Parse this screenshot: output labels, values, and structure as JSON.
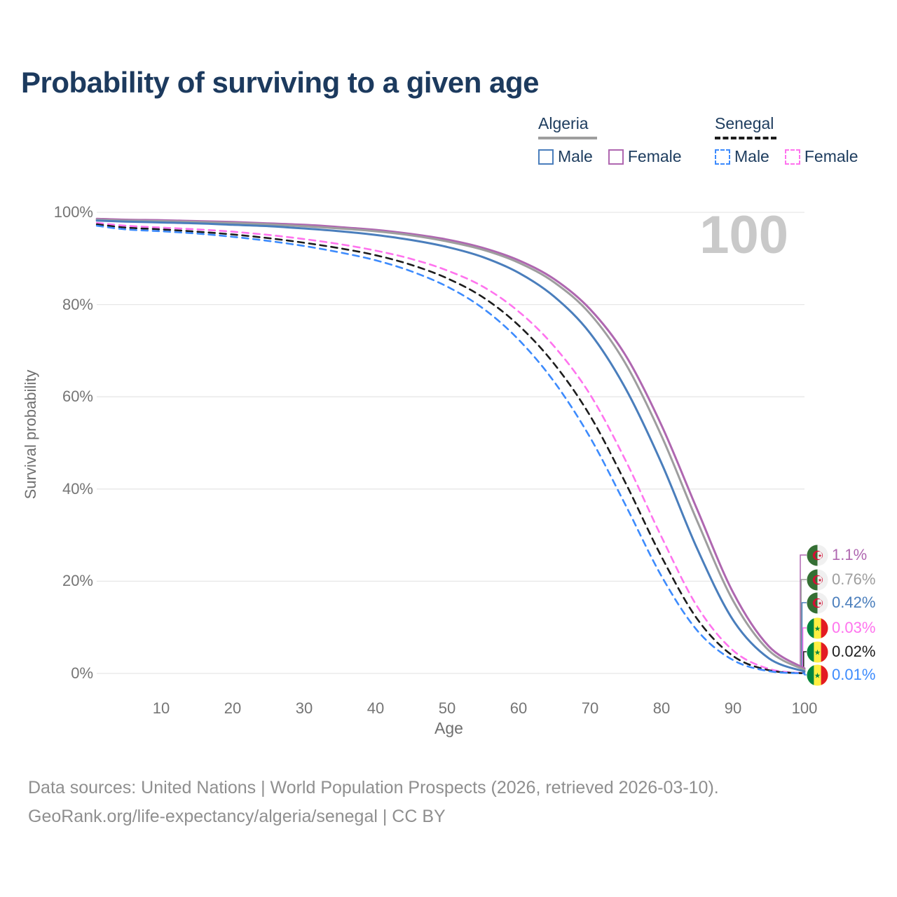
{
  "header": {
    "title": "Probability of surviving to a given age"
  },
  "legend": {
    "groups": [
      {
        "country": "Algeria",
        "line_style": "solid",
        "underline_color": "#9e9e9e",
        "items": [
          {
            "label": "Male",
            "color": "#4a7ebc",
            "style": "solid"
          },
          {
            "label": "Female",
            "color": "#af67b0",
            "style": "solid"
          }
        ]
      },
      {
        "country": "Senegal",
        "line_style": "dashed",
        "underline_color": "#1c1c1c",
        "items": [
          {
            "label": "Male",
            "color": "#3d8bfd",
            "style": "dashed"
          },
          {
            "label": "Female",
            "color": "#ff73ee",
            "style": "dashed"
          }
        ]
      }
    ]
  },
  "chart": {
    "age_counter": "100"
  },
  "chart_data": {
    "type": "line",
    "title": "Probability of surviving to a given age",
    "xlabel": "Age",
    "ylabel": "Survival probability",
    "xlim": [
      0,
      100
    ],
    "ylim": [
      0,
      100
    ],
    "xticks": [
      10,
      20,
      30,
      40,
      50,
      60,
      70,
      80,
      90,
      100
    ],
    "yticks": [
      {
        "value": 0,
        "label": "0%"
      },
      {
        "value": 20,
        "label": "20%"
      },
      {
        "value": 40,
        "label": "40%"
      },
      {
        "value": 60,
        "label": "60%"
      },
      {
        "value": 80,
        "label": "80%"
      },
      {
        "value": 100,
        "label": "100%"
      }
    ],
    "grid": "horizontal",
    "legend_position": "top-right",
    "ages": [
      1,
      5,
      10,
      15,
      20,
      25,
      30,
      35,
      40,
      45,
      50,
      55,
      60,
      65,
      70,
      75,
      80,
      85,
      90,
      95,
      100
    ],
    "series": [
      {
        "id": "algeria-female",
        "name": "Algeria Female",
        "country": "Algeria",
        "sex": "Female",
        "color": "#af67b0",
        "dash": "solid",
        "flag": "algeria",
        "end_label": "1.1%",
        "values": [
          98.6,
          98.4,
          98.3,
          98.1,
          97.9,
          97.6,
          97.3,
          96.8,
          96.2,
          95.3,
          94.1,
          92.3,
          89.6,
          85.5,
          79.0,
          68.9,
          53.8,
          35.5,
          17.6,
          5.9,
          1.1
        ]
      },
      {
        "id": "algeria-both",
        "name": "Algeria (both sexes)",
        "country": "Algeria",
        "sex": "Both",
        "color": "#9e9e9e",
        "dash": "solid",
        "flag": "algeria",
        "end_label": "0.76%",
        "values": [
          98.4,
          98.2,
          98.1,
          97.9,
          97.7,
          97.4,
          97.0,
          96.5,
          95.9,
          95.0,
          93.7,
          91.9,
          89.1,
          84.8,
          78.0,
          67.1,
          51.5,
          33.0,
          15.8,
          5.0,
          0.76
        ]
      },
      {
        "id": "algeria-male",
        "name": "Algeria Male",
        "country": "Algeria",
        "sex": "Male",
        "color": "#4a7ebc",
        "dash": "solid",
        "flag": "algeria",
        "end_label": "0.42%",
        "values": [
          98.2,
          98.0,
          97.8,
          97.6,
          97.3,
          97.0,
          96.5,
          95.9,
          95.1,
          94.0,
          92.5,
          90.3,
          86.9,
          81.7,
          73.8,
          61.7,
          45.6,
          27.0,
          11.6,
          3.3,
          0.42
        ]
      },
      {
        "id": "senegal-female",
        "name": "Senegal Female",
        "country": "Senegal",
        "sex": "Female",
        "color": "#ff73ee",
        "dash": "dashed",
        "flag": "senegal",
        "end_label": "0.03%",
        "values": [
          97.7,
          97.1,
          96.7,
          96.3,
          95.8,
          95.1,
          94.2,
          93.1,
          91.7,
          89.9,
          87.4,
          83.9,
          78.5,
          70.9,
          60.5,
          46.1,
          29.6,
          14.5,
          5.0,
          1.0,
          0.03
        ]
      },
      {
        "id": "senegal-both",
        "name": "Senegal (both sexes)",
        "country": "Senegal",
        "sex": "Both",
        "color": "#1c1c1c",
        "dash": "dashed",
        "flag": "senegal",
        "end_label": "0.02%",
        "values": [
          97.4,
          96.7,
          96.3,
          95.8,
          95.2,
          94.4,
          93.4,
          92.2,
          90.7,
          88.6,
          85.7,
          81.6,
          75.5,
          67.1,
          55.9,
          41.2,
          25.3,
          11.8,
          3.8,
          0.7,
          0.02
        ]
      },
      {
        "id": "senegal-male",
        "name": "Senegal Male",
        "country": "Senegal",
        "sex": "Male",
        "color": "#3d8bfd",
        "dash": "dashed",
        "flag": "senegal",
        "end_label": "0.01%",
        "values": [
          97.1,
          96.3,
          95.9,
          95.4,
          94.7,
          93.8,
          92.7,
          91.3,
          89.6,
          87.2,
          83.9,
          79.2,
          72.4,
          63.2,
          51.2,
          36.4,
          21.1,
          9.3,
          2.9,
          0.5,
          0.01
        ]
      }
    ]
  },
  "footer": {
    "line1": "Data sources: United Nations | World Population Prospects (2026, retrieved 2026-03-10).",
    "line2": "GeoRank.org/life-expectancy/algeria/senegal | CC BY"
  }
}
